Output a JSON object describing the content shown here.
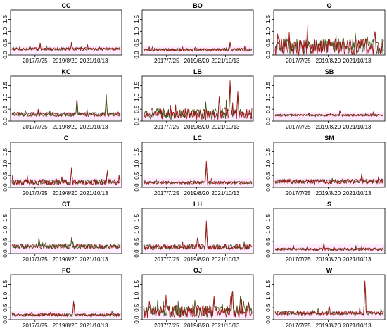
{
  "chart_data": {
    "type": "line",
    "grid": false,
    "legend": "none",
    "colors": {
      "upper_series": "#a01818",
      "lower_series": "#3d5a1e",
      "highlight_band": "#ff55ff"
    },
    "x_ticks": [
      "2017/7/25",
      "2019/8/20",
      "2021/10/13"
    ],
    "y_ticks": [
      "0.0",
      "0.5",
      "1.0",
      "1.5"
    ],
    "ylim": [
      0,
      1.9
    ],
    "panels": [
      {
        "title": "CC",
        "base": 0.25,
        "noise": 0.06,
        "peaks": [
          [
            0.26,
            0.45
          ],
          [
            0.55,
            0.5
          ]
        ],
        "dominant": "upper_series"
      },
      {
        "title": "BO",
        "base": 0.22,
        "noise": 0.06,
        "peaks": [
          [
            0.8,
            0.55
          ]
        ],
        "dominant": "upper_series"
      },
      {
        "title": "O",
        "base": 0.35,
        "noise": 0.35,
        "peaks": [
          [
            0.92,
            1.15
          ]
        ],
        "dominant": "upper_series"
      },
      {
        "title": "KC",
        "base": 0.28,
        "noise": 0.09,
        "peaks": [
          [
            0.6,
            1.0
          ],
          [
            0.87,
            1.05
          ]
        ],
        "dominant": "lower_series"
      },
      {
        "title": "LB",
        "base": 0.3,
        "noise": 0.25,
        "peaks": [
          [
            0.8,
            1.8
          ],
          [
            0.7,
            1.1
          ],
          [
            0.87,
            1.2
          ]
        ],
        "dominant": "upper_series"
      },
      {
        "title": "SB",
        "base": 0.25,
        "noise": 0.05,
        "peaks": [
          [
            0.6,
            0.45
          ]
        ],
        "dominant": "upper_series"
      },
      {
        "title": "C",
        "base": 0.22,
        "noise": 0.12,
        "peaks": [
          [
            0.55,
            0.8
          ],
          [
            0.88,
            0.75
          ]
        ],
        "dominant": "upper_series"
      },
      {
        "title": "LC",
        "base": 0.2,
        "noise": 0.06,
        "peaks": [
          [
            0.58,
            1.05
          ]
        ],
        "dominant": "upper_series"
      },
      {
        "title": "SM",
        "base": 0.25,
        "noise": 0.1,
        "peaks": [
          [
            0.8,
            0.55
          ]
        ],
        "dominant": "upper_series"
      },
      {
        "title": "CT",
        "base": 0.3,
        "noise": 0.1,
        "peaks": [
          [
            0.25,
            0.65
          ],
          [
            0.55,
            0.6
          ]
        ],
        "dominant": "lower_series"
      },
      {
        "title": "LH",
        "base": 0.28,
        "noise": 0.12,
        "peaks": [
          [
            0.58,
            1.3
          ],
          [
            0.5,
            0.75
          ]
        ],
        "dominant": "upper_series"
      },
      {
        "title": "S",
        "base": 0.18,
        "noise": 0.06,
        "peaks": [
          [
            0.45,
            0.4
          ]
        ],
        "dominant": "upper_series"
      },
      {
        "title": "FC",
        "base": 0.2,
        "noise": 0.06,
        "peaks": [
          [
            0.57,
            0.85
          ]
        ],
        "dominant": "upper_series"
      },
      {
        "title": "OJ",
        "base": 0.35,
        "noise": 0.28,
        "peaks": [
          [
            0.82,
            1.4
          ],
          [
            0.65,
            0.95
          ]
        ],
        "dominant": "upper_series"
      },
      {
        "title": "W",
        "base": 0.28,
        "noise": 0.08,
        "peaks": [
          [
            0.83,
            1.8
          ],
          [
            0.5,
            0.6
          ]
        ],
        "dominant": "upper_series"
      }
    ]
  }
}
